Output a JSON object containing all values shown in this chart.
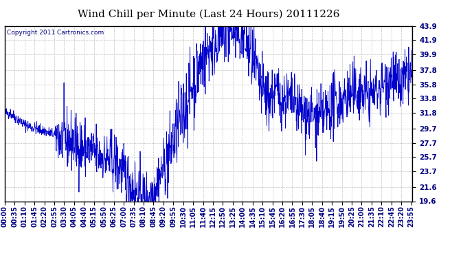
{
  "title": "Wind Chill per Minute (Last 24 Hours) 20111226",
  "copyright": "Copyright 2011 Cartronics.com",
  "ylabel_ticks": [
    19.6,
    21.6,
    23.7,
    25.7,
    27.7,
    29.7,
    31.8,
    33.8,
    35.8,
    37.8,
    39.9,
    41.9,
    43.9
  ],
  "ymin": 19.6,
  "ymax": 43.9,
  "line_color": "#0000cc",
  "background_color": "#ffffff",
  "grid_color": "#aaaaaa",
  "title_fontsize": 11,
  "copyright_fontsize": 6.5,
  "tick_fontsize": 7.5,
  "xtick_interval": 35
}
